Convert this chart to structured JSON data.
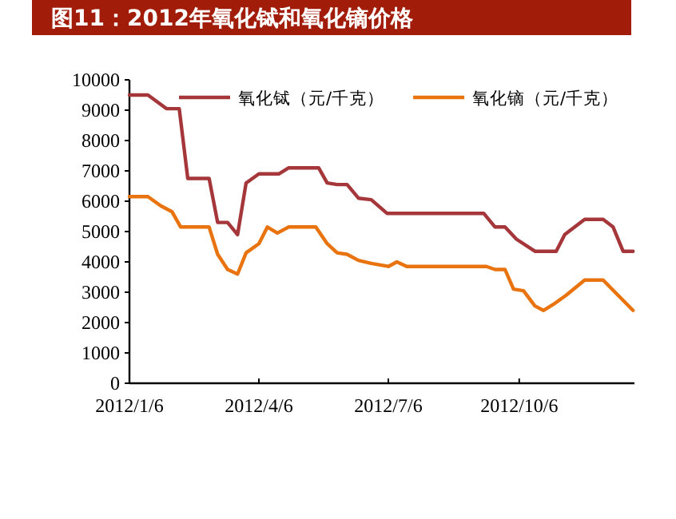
{
  "chart_data": {
    "type": "line",
    "title": "图11：2012年氧化铽和氧化镝价格",
    "xlim": [
      "2012-01-06",
      "2012-12-26"
    ],
    "xticks": [
      {
        "value": "2012-01-06",
        "label": "2012/1/6"
      },
      {
        "value": "2012-04-06",
        "label": "2012/4/6"
      },
      {
        "value": "2012-07-06",
        "label": "2012/7/6"
      },
      {
        "value": "2012-10-06",
        "label": "2012/10/6"
      }
    ],
    "ylim": [
      0,
      10000
    ],
    "yticks": [
      0,
      1000,
      2000,
      3000,
      4000,
      5000,
      6000,
      7000,
      8000,
      9000,
      10000
    ],
    "grid": false,
    "legend": "top",
    "marker": "none",
    "line_style": "solid",
    "series": [
      {
        "name": "氧化铽（元/千克）",
        "color": "#a5373a",
        "x": [
          "2012-01-06",
          "2012-01-19",
          "2012-02-01",
          "2012-02-10",
          "2012-02-16",
          "2012-03-02",
          "2012-03-08",
          "2012-03-15",
          "2012-03-22",
          "2012-03-28",
          "2012-04-06",
          "2012-04-20",
          "2012-04-27",
          "2012-05-18",
          "2012-05-24",
          "2012-05-31",
          "2012-06-07",
          "2012-06-15",
          "2012-06-24",
          "2012-07-05",
          "2012-09-11",
          "2012-09-19",
          "2012-09-26",
          "2012-10-04",
          "2012-10-17",
          "2012-11-01",
          "2012-11-07",
          "2012-11-21",
          "2012-12-04",
          "2012-12-11",
          "2012-12-18",
          "2012-12-25"
        ],
        "values": [
          9500,
          9500,
          9050,
          9050,
          6750,
          6750,
          5300,
          5300,
          4900,
          6600,
          6900,
          6900,
          7100,
          7100,
          6600,
          6550,
          6550,
          6100,
          6050,
          5600,
          5600,
          5150,
          5150,
          4750,
          4350,
          4350,
          4900,
          5400,
          5400,
          5150,
          4350,
          4350
        ]
      },
      {
        "name": "氧化镝（元/千克）",
        "color": "#e8730f",
        "x": [
          "2012-01-06",
          "2012-01-19",
          "2012-01-28",
          "2012-02-05",
          "2012-02-11",
          "2012-03-02",
          "2012-03-08",
          "2012-03-15",
          "2012-03-22",
          "2012-03-28",
          "2012-04-06",
          "2012-04-12",
          "2012-04-19",
          "2012-04-27",
          "2012-05-16",
          "2012-05-24",
          "2012-05-31",
          "2012-06-07",
          "2012-06-15",
          "2012-06-24",
          "2012-07-06",
          "2012-07-12",
          "2012-07-19",
          "2012-09-13",
          "2012-09-19",
          "2012-09-26",
          "2012-10-02",
          "2012-10-09",
          "2012-10-17",
          "2012-10-23",
          "2012-10-30",
          "2012-11-08",
          "2012-11-21",
          "2012-12-04",
          "2012-12-25"
        ],
        "values": [
          6150,
          6150,
          5850,
          5650,
          5150,
          5150,
          4250,
          3750,
          3600,
          4300,
          4600,
          5150,
          4950,
          5150,
          5150,
          4600,
          4300,
          4250,
          4050,
          3950,
          3850,
          4000,
          3850,
          3850,
          3750,
          3750,
          3100,
          3050,
          2550,
          2400,
          2600,
          2900,
          3400,
          3400,
          2400
        ]
      }
    ]
  }
}
